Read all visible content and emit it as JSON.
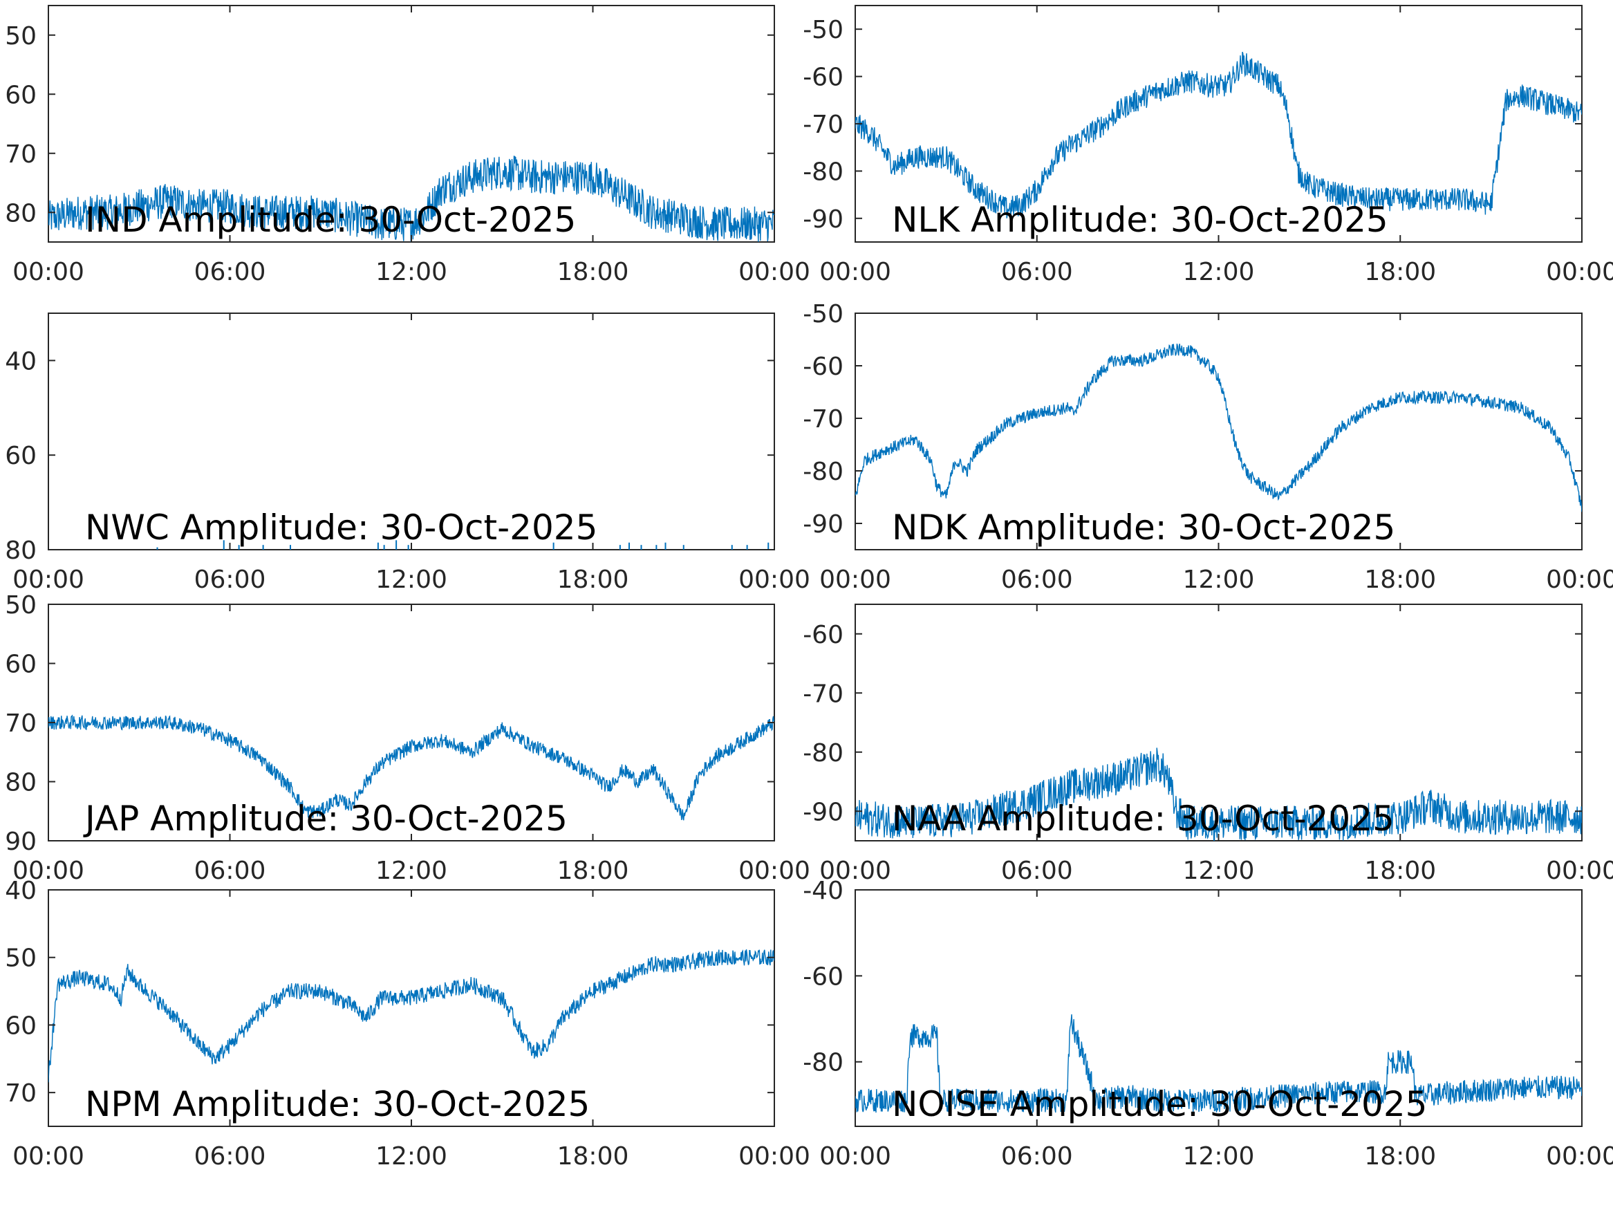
{
  "figure": {
    "series_color": "#0072BD",
    "axis_color": "#262626",
    "background": "#ffffff"
  },
  "chart_data": [
    {
      "type": "line",
      "title": "IND Amplitude: 30-Oct-2025",
      "xlabel": "",
      "ylabel": "",
      "xlim": [
        0,
        24
      ],
      "ylim": [
        -85,
        -45
      ],
      "x_ticks": [
        0,
        6,
        12,
        18,
        24
      ],
      "x_tick_labels": [
        "00:00",
        "06:00",
        "12:00",
        "18:00",
        "00:00"
      ],
      "y_ticks": [
        -80,
        -70,
        -60,
        -50
      ],
      "y_tick_labels": [
        "80",
        "70",
        "60",
        "50"
      ],
      "grid": false,
      "series": [
        {
          "x": [
            0,
            1,
            2,
            3,
            4,
            5,
            6,
            7,
            8,
            9,
            10,
            11,
            12,
            12.5,
            13,
            14,
            15,
            16,
            17,
            18,
            19,
            20,
            21,
            22,
            23,
            24
          ],
          "y": [
            -81,
            -80,
            -80,
            -79,
            -78,
            -79,
            -79,
            -80,
            -80,
            -80,
            -81,
            -82,
            -82,
            -80,
            -76,
            -74,
            -73,
            -74,
            -74,
            -74,
            -77,
            -80,
            -81,
            -82,
            -82,
            -82
          ],
          "noise": 3
        }
      ]
    },
    {
      "type": "line",
      "title": "NLK Amplitude: 30-Oct-2025",
      "xlabel": "",
      "ylabel": "",
      "xlim": [
        0,
        24
      ],
      "ylim": [
        -95,
        -45
      ],
      "x_ticks": [
        0,
        6,
        12,
        18,
        24
      ],
      "x_tick_labels": [
        "00:00",
        "06:00",
        "12:00",
        "18:00",
        "00:00"
      ],
      "y_ticks": [
        -90,
        -80,
        -70,
        -60,
        -50
      ],
      "y_tick_labels": [
        "-90",
        "-80",
        "-70",
        "-60",
        "-50"
      ],
      "grid": false,
      "series": [
        {
          "x": [
            0,
            0.5,
            1.3,
            2,
            3,
            4,
            4.5,
            5,
            5.5,
            6,
            6.5,
            7,
            8,
            9,
            10,
            11,
            11.8,
            12.3,
            12.8,
            13.5,
            14,
            14.3,
            14.6,
            15,
            16,
            17,
            18,
            19,
            20,
            21,
            21.5,
            22,
            23,
            24
          ],
          "y": [
            -70,
            -72,
            -79,
            -77,
            -77,
            -84,
            -86,
            -88,
            -87,
            -84,
            -78,
            -75,
            -71,
            -66,
            -63,
            -61,
            -62,
            -62,
            -57,
            -60,
            -62,
            -68,
            -80,
            -83,
            -85,
            -86,
            -86,
            -86,
            -86,
            -87,
            -65,
            -64,
            -66,
            -68
          ],
          "noise": 2.5
        }
      ]
    },
    {
      "type": "line",
      "title": "NWC Amplitude: 30-Oct-2025",
      "xlabel": "",
      "ylabel": "",
      "xlim": [
        0,
        24
      ],
      "ylim": [
        -80,
        -30
      ],
      "x_ticks": [
        0,
        6,
        12,
        18,
        24
      ],
      "x_tick_labels": [
        "00:00",
        "06:00",
        "12:00",
        "18:00",
        "00:00"
      ],
      "y_ticks": [
        -80,
        -60,
        -40
      ],
      "y_tick_labels": [
        "80",
        "60",
        "40"
      ],
      "grid": false,
      "series": [
        {
          "x": [
            0,
            24
          ],
          "y": [
            -81,
            -81
          ],
          "noise": 0,
          "spikes_x": [
            3.6,
            5.8,
            6.3,
            7.1,
            8.0,
            10.9,
            11.1,
            11.5,
            11.9,
            16.7,
            18.9,
            19.2,
            19.6,
            20.1,
            20.4,
            21.0,
            22.6,
            23.1,
            23.8
          ],
          "spikes_y": [
            -79.5,
            -78,
            -79,
            -79,
            -79,
            -78.5,
            -79,
            -78,
            -79,
            -78.5,
            -79,
            -78.5,
            -79,
            -79,
            -78.5,
            -79,
            -79,
            -79,
            -78.5
          ]
        }
      ]
    },
    {
      "type": "line",
      "title": "NDK Amplitude: 30-Oct-2025",
      "xlabel": "",
      "ylabel": "",
      "xlim": [
        0,
        24
      ],
      "ylim": [
        -95,
        -50
      ],
      "x_ticks": [
        0,
        6,
        12,
        18,
        24
      ],
      "x_tick_labels": [
        "00:00",
        "06:00",
        "12:00",
        "18:00",
        "00:00"
      ],
      "y_ticks": [
        -90,
        -80,
        -70,
        -60,
        -50
      ],
      "y_tick_labels": [
        "-90",
        "-80",
        "-70",
        "-60",
        "-50"
      ],
      "grid": false,
      "series": [
        {
          "x": [
            0,
            0.3,
            1,
            2,
            2.5,
            2.7,
            3,
            3.3,
            3.7,
            4,
            5,
            6,
            7,
            7.2,
            7.8,
            8.5,
            9.5,
            10.5,
            11,
            11.5,
            12,
            12.3,
            12.6,
            13,
            14,
            15,
            16,
            17,
            18,
            19,
            20,
            21,
            22,
            23,
            23.6,
            24
          ],
          "y": [
            -85,
            -78,
            -76,
            -74,
            -78,
            -83,
            -85,
            -78,
            -80,
            -76,
            -71,
            -69,
            -68,
            -69,
            -63,
            -59,
            -59,
            -57,
            -57,
            -59,
            -62,
            -69,
            -76,
            -81,
            -85,
            -79,
            -72,
            -68,
            -66,
            -66,
            -66,
            -67,
            -68,
            -72,
            -78,
            -87
          ],
          "noise": 1.2
        }
      ]
    },
    {
      "type": "line",
      "title": "JAP Amplitude: 30-Oct-2025",
      "xlabel": "",
      "ylabel": "",
      "xlim": [
        0,
        24
      ],
      "ylim": [
        -90,
        -50
      ],
      "x_ticks": [
        0,
        6,
        12,
        18,
        24
      ],
      "x_tick_labels": [
        "00:00",
        "06:00",
        "12:00",
        "18:00",
        "00:00"
      ],
      "y_ticks": [
        -90,
        -80,
        -70,
        -60,
        -50
      ],
      "y_tick_labels": [
        "90",
        "80",
        "70",
        "60",
        "50"
      ],
      "grid": false,
      "series": [
        {
          "x": [
            0,
            2,
            4,
            5,
            6,
            7,
            8,
            8.5,
            9,
            9.5,
            10,
            10.5,
            11,
            12,
            13,
            14,
            15,
            16,
            17,
            18,
            18.5,
            19,
            19.5,
            20,
            20.5,
            21,
            21.5,
            22,
            23,
            24
          ],
          "y": [
            -70,
            -70,
            -70,
            -71,
            -73,
            -76,
            -81,
            -85,
            -85,
            -83,
            -84,
            -80,
            -77,
            -74,
            -73,
            -75,
            -71,
            -74,
            -76,
            -79,
            -81,
            -78,
            -80,
            -78,
            -82,
            -86,
            -79,
            -76,
            -73,
            -70
          ],
          "noise": 1.2
        }
      ]
    },
    {
      "type": "line",
      "title": "NAA Amplitude: 30-Oct-2025",
      "xlabel": "",
      "ylabel": "",
      "xlim": [
        0,
        24
      ],
      "ylim": [
        -95,
        -55
      ],
      "x_ticks": [
        0,
        6,
        12,
        18,
        24
      ],
      "x_tick_labels": [
        "00:00",
        "06:00",
        "12:00",
        "18:00",
        "00:00"
      ],
      "y_ticks": [
        -90,
        -80,
        -70,
        -60
      ],
      "y_tick_labels": [
        "-90",
        "-80",
        "-70",
        "-60"
      ],
      "grid": false,
      "series": [
        {
          "x": [
            0,
            2,
            4,
            6,
            7,
            8,
            9,
            10,
            10.3,
            10.6,
            11,
            12,
            14,
            16,
            18,
            19,
            20,
            22,
            24
          ],
          "y": [
            -91,
            -92,
            -91,
            -88,
            -86,
            -85,
            -84,
            -82,
            -84,
            -90,
            -92,
            -92,
            -92,
            -92,
            -91,
            -89,
            -91,
            -91,
            -91
          ],
          "noise": 3
        }
      ]
    },
    {
      "type": "line",
      "title": "NPM Amplitude: 30-Oct-2025",
      "xlabel": "",
      "ylabel": "",
      "xlim": [
        0,
        24
      ],
      "ylim": [
        -75,
        -40
      ],
      "x_ticks": [
        0,
        6,
        12,
        18,
        24
      ],
      "x_tick_labels": [
        "00:00",
        "06:00",
        "12:00",
        "18:00",
        "00:00"
      ],
      "y_ticks": [
        -70,
        -60,
        -50,
        -40
      ],
      "y_tick_labels": [
        "70",
        "60",
        "50",
        "40"
      ],
      "grid": false,
      "series": [
        {
          "x": [
            0,
            0.3,
            1,
            2,
            2.4,
            2.6,
            3,
            4,
            5,
            5.5,
            6,
            7,
            8,
            9,
            10,
            10.5,
            11,
            12,
            13,
            14,
            15,
            15.5,
            16,
            16.5,
            17,
            18,
            19,
            20,
            21,
            22,
            23,
            24
          ],
          "y": [
            -68,
            -54,
            -53,
            -54,
            -56,
            -52,
            -54,
            -58,
            -63,
            -65,
            -63,
            -58,
            -55,
            -55,
            -57,
            -59,
            -56,
            -56,
            -55,
            -54,
            -56,
            -60,
            -64,
            -63,
            -59,
            -55,
            -53,
            -51,
            -51,
            -50,
            -50,
            -50
          ],
          "noise": 1.2
        }
      ]
    },
    {
      "type": "line",
      "title": "NOISE Amplitude: 30-Oct-2025",
      "xlabel": "",
      "ylabel": "",
      "xlim": [
        0,
        24
      ],
      "ylim": [
        -95,
        -40
      ],
      "x_ticks": [
        0,
        6,
        12,
        18,
        24
      ],
      "x_tick_labels": [
        "00:00",
        "06:00",
        "12:00",
        "18:00",
        "00:00"
      ],
      "y_ticks": [
        -80,
        -60,
        -40
      ],
      "y_tick_labels": [
        "-80",
        "-60",
        "-40"
      ],
      "grid": false,
      "series": [
        {
          "x": [
            0,
            1.7,
            1.8,
            2.7,
            2.8,
            6,
            7,
            7.1,
            8,
            9,
            10,
            12,
            14,
            16,
            17.5,
            17.6,
            18.4,
            18.5,
            20,
            22,
            24
          ],
          "y": [
            -89,
            -89,
            -74,
            -74,
            -89,
            -89,
            -89,
            -70,
            -89,
            -88,
            -89,
            -89,
            -88,
            -87,
            -87,
            -80,
            -80,
            -88,
            -87,
            -86,
            -86
          ],
          "noise": 2.8
        }
      ]
    }
  ]
}
